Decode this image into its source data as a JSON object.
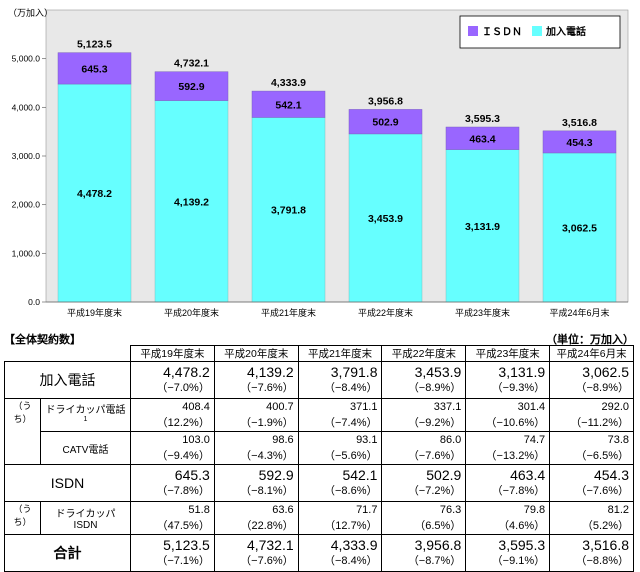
{
  "chart_data": {
    "type": "bar",
    "stacked": true,
    "unit_label": "（万加入）",
    "categories": [
      "平成19年度末",
      "平成20年度末",
      "平成21年度末",
      "平成22年度末",
      "平成23年度末",
      "平成24年6月末"
    ],
    "series": [
      {
        "name": "加入電話",
        "values": [
          4478.2,
          4139.2,
          3791.8,
          3453.9,
          3131.9,
          3062.5
        ],
        "labels": [
          "4,478.2",
          "4,139.2",
          "3,791.8",
          "3,453.9",
          "3,131.9",
          "3,062.5"
        ]
      },
      {
        "name": "ＩＳＤＮ",
        "values": [
          645.3,
          592.9,
          542.1,
          502.9,
          463.4,
          454.3
        ],
        "labels": [
          "645.3",
          "592.9",
          "542.1",
          "502.9",
          "463.4",
          "454.3"
        ]
      }
    ],
    "totals": [
      "5,123.5",
      "4,732.1",
      "4,333.9",
      "3,956.8",
      "3,595.3",
      "3,516.8"
    ],
    "y_ticks": [
      "0.0",
      "1,000.0",
      "2,000.0",
      "3,000.0",
      "4,000.0",
      "5,000.0"
    ],
    "ylim": [
      0,
      6000
    ],
    "legend_position": "top-right",
    "colors": {
      "phone": "#66ffff",
      "isdn": "#9966ff",
      "plot_bg": "#e8e8e8"
    }
  },
  "table": {
    "title": "【全体契約数】",
    "unit": "（単位：万加入）",
    "headers": [
      "平成19年度末",
      "平成20年度末",
      "平成21年度末",
      "平成22年度末",
      "平成23年度末",
      "平成24年6月末"
    ],
    "uchi": "（うち）",
    "rows": {
      "phone": {
        "label": "加入電話",
        "values": [
          "4,478.2",
          "4,139.2",
          "3,791.8",
          "3,453.9",
          "3,131.9",
          "3,062.5"
        ],
        "pct": [
          "（−7.0%）",
          "（−7.6%）",
          "（−8.4%）",
          "（−8.9%）",
          "（−9.3%）",
          "（−8.9%）"
        ]
      },
      "dry_phone": {
        "label": "ドライカッパ電話",
        "note": "1",
        "values": [
          "408.4",
          "400.7",
          "371.1",
          "337.1",
          "301.4",
          "292.0"
        ],
        "pct": [
          "（12.2%）",
          "（−1.9%）",
          "（−7.4%）",
          "（−9.2%）",
          "（−10.6%）",
          "（−11.2%）"
        ]
      },
      "catv": {
        "label": "CATV電話",
        "values": [
          "103.0",
          "98.6",
          "93.1",
          "86.0",
          "74.7",
          "73.8"
        ],
        "pct": [
          "（−9.4%）",
          "（−4.3%）",
          "（−5.6%）",
          "（−7.6%）",
          "（−13.2%）",
          "（−6.5%）"
        ]
      },
      "isdn": {
        "label": "ISDN",
        "values": [
          "645.3",
          "592.9",
          "542.1",
          "502.9",
          "463.4",
          "454.3"
        ],
        "pct": [
          "（−7.8%）",
          "（−8.1%）",
          "（−8.6%）",
          "（−7.2%）",
          "（−7.8%）",
          "（−7.6%）"
        ]
      },
      "dry_isdn": {
        "label": "ドライカッパISDN",
        "values": [
          "51.8",
          "63.6",
          "71.7",
          "76.3",
          "79.8",
          "81.2"
        ],
        "pct": [
          "（47.5%）",
          "（22.8%）",
          "（12.7%）",
          "（6.5%）",
          "（4.6%）",
          "（5.2%）"
        ]
      },
      "total": {
        "label": "合計",
        "values": [
          "5,123.5",
          "4,732.1",
          "4,333.9",
          "3,956.8",
          "3,595.3",
          "3,516.8"
        ],
        "pct": [
          "（−7.1%）",
          "（−7.6%）",
          "（−8.4%）",
          "（−8.7%）",
          "（−9.1%）",
          "（−8.8%）"
        ]
      }
    }
  }
}
